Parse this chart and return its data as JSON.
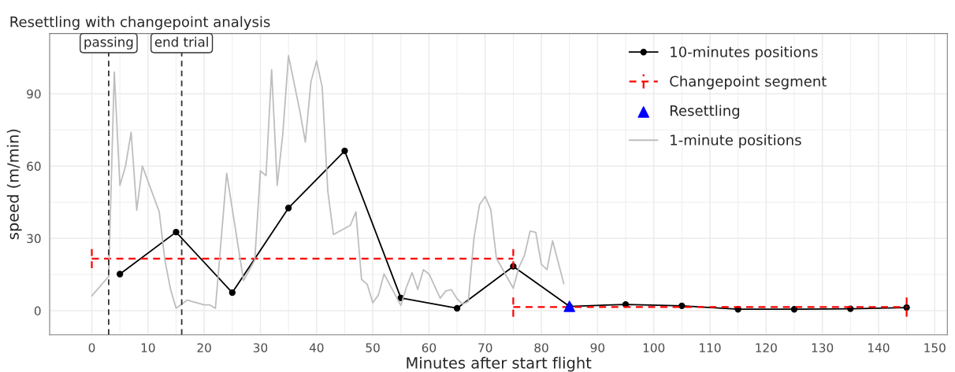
{
  "chart_data": {
    "type": "line",
    "title": "Resettling with changepoint analysis",
    "xlabel": "Minutes after start flight",
    "ylabel": "speed (m/min)",
    "xlim": [
      -7.5,
      152.25
    ],
    "ylim": [
      -10,
      115
    ],
    "xticks": [
      0,
      10,
      20,
      30,
      40,
      50,
      60,
      70,
      80,
      90,
      100,
      110,
      120,
      130,
      140,
      150
    ],
    "yticks": [
      0,
      30,
      60,
      90
    ],
    "grid": true,
    "legend": "top right",
    "ref_lines": [
      {
        "axis": "x",
        "value": 3,
        "label": "passing",
        "color": "#333333",
        "line_style": "dashed"
      },
      {
        "axis": "x",
        "value": 16,
        "label": "end trial",
        "color": "#333333",
        "line_style": "dashed"
      }
    ],
    "series": [
      {
        "name": "10-minutes positions",
        "color": "#000000",
        "marker": "circle",
        "line_style": "solid",
        "x": [
          5,
          15,
          25,
          35,
          45,
          55,
          65,
          75,
          85,
          95,
          105,
          115,
          125,
          135,
          145
        ],
        "values": [
          15.2,
          32.6,
          7.5,
          42.6,
          66.3,
          5.3,
          1.0,
          18.4,
          1.8,
          2.6,
          2.0,
          0.6,
          0.6,
          0.8,
          1.3
        ]
      },
      {
        "name": "Changepoint segment",
        "color": "#ff0000",
        "marker": "none",
        "line_style": "dashed",
        "x": [
          0,
          75
        ],
        "values": [
          21.6,
          21.6
        ],
        "errors": [
          4,
          4
        ]
      },
      {
        "color": "#ff0000",
        "marker": "none",
        "line_style": "dashed",
        "x": [
          75,
          145
        ],
        "values": [
          1.5,
          1.5
        ],
        "errors": [
          4,
          4
        ]
      },
      {
        "name": "Resettling",
        "type": "scatter",
        "color": "#0000ff",
        "marker": "triangle",
        "x": [
          85
        ],
        "values": [
          1.8
        ]
      },
      {
        "name": "1-minute positions",
        "color": "#bebebe",
        "marker": "none",
        "line_style": "solid",
        "x": [
          0,
          3,
          4,
          5,
          6,
          7,
          8,
          9,
          12,
          13,
          14,
          15,
          17,
          20,
          21,
          22,
          24,
          27,
          29,
          30,
          31,
          32,
          33,
          34,
          35,
          37,
          38,
          39,
          40,
          41,
          42,
          43,
          46,
          47,
          48,
          49,
          50,
          51,
          52,
          55,
          56,
          57,
          58,
          59,
          60,
          62,
          63,
          64,
          65,
          66,
          67,
          68,
          69,
          70,
          71,
          72,
          75,
          76,
          77,
          78,
          79,
          80,
          81,
          82,
          84
        ],
        "values": [
          6.2,
          14.2,
          99,
          52,
          60,
          74,
          41.7,
          60,
          41,
          21,
          9,
          1,
          4.4,
          2.4,
          2.4,
          1,
          57,
          12.5,
          21,
          58,
          56,
          100,
          52,
          73.6,
          105.8,
          83,
          70,
          95,
          103.6,
          92.7,
          49.6,
          31.6,
          35.4,
          41,
          13,
          11,
          3.3,
          6.5,
          15.3,
          2.2,
          9.8,
          15.8,
          8.8,
          17,
          15.3,
          5.2,
          8.2,
          8.7,
          4.9,
          2.7,
          3.8,
          30,
          44,
          47.4,
          42,
          21.8,
          9.3,
          18,
          23,
          33,
          32.5,
          19.3,
          17,
          29,
          11.2
        ]
      }
    ]
  }
}
